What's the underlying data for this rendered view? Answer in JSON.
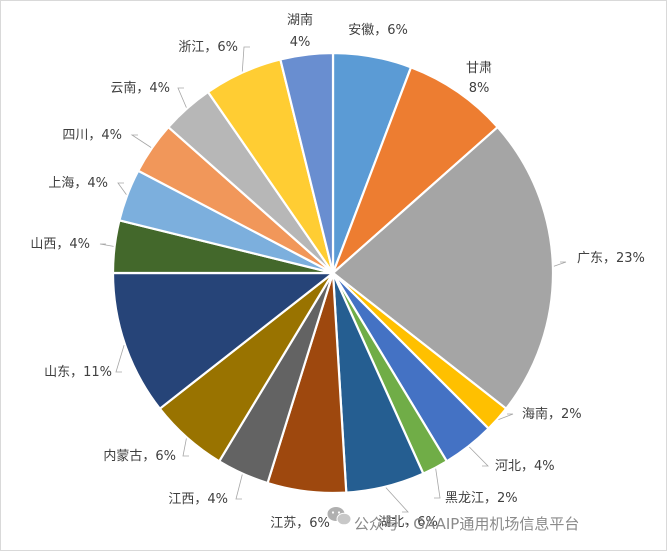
{
  "chart_data": {
    "type": "pie",
    "title": "",
    "slices": [
      {
        "label": "安徽",
        "value": 6,
        "display": "安徽，6%",
        "color": "#5b9bd5"
      },
      {
        "label": "甘肃",
        "value": 8,
        "display": "甘肃 8%",
        "color": "#ed7d31"
      },
      {
        "label": "广东",
        "value": 23,
        "display": "广东，23%",
        "color": "#a5a5a5"
      },
      {
        "label": "海南",
        "value": 2,
        "display": "海南，2%",
        "color": "#ffc000"
      },
      {
        "label": "河北",
        "value": 4,
        "display": "河北，4%",
        "color": "#4472c4"
      },
      {
        "label": "黑龙江",
        "value": 2,
        "display": "黑龙江，2%",
        "color": "#70ad47"
      },
      {
        "label": "湖北",
        "value": 6,
        "display": "湖北，6%",
        "color": "#255e91"
      },
      {
        "label": "江苏",
        "value": 6,
        "display": "江苏，6%",
        "color": "#9e480e"
      },
      {
        "label": "江西",
        "value": 4,
        "display": "江西，4%",
        "color": "#636363"
      },
      {
        "label": "内蒙古",
        "value": 6,
        "display": "内蒙古，6%",
        "color": "#997300"
      },
      {
        "label": "山东",
        "value": 11,
        "display": "山东，11%",
        "color": "#264478"
      },
      {
        "label": "山西",
        "value": 4,
        "display": "山西，4%",
        "color": "#43682b"
      },
      {
        "label": "上海",
        "value": 4,
        "display": "上海，4%",
        "color": "#7cafdd"
      },
      {
        "label": "四川",
        "value": 4,
        "display": "四川，4%",
        "color": "#f1975a"
      },
      {
        "label": "云南",
        "value": 4,
        "display": "云南，4%",
        "color": "#b7b7b7"
      },
      {
        "label": "浙江",
        "value": 6,
        "display": "浙江，6%",
        "color": "#ffcd33"
      },
      {
        "label": "湖南",
        "value": 4,
        "display": "湖南 4%",
        "color": "#698ed0"
      }
    ]
  },
  "watermark": {
    "icon": "wechat-icon",
    "text": "公众号 · GAAIP通用机场信息平台"
  }
}
